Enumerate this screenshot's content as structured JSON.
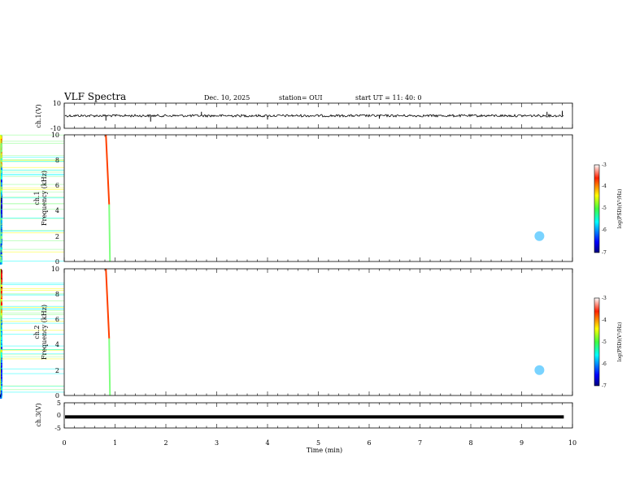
{
  "header": {
    "title": "VLF Spectra",
    "date": "Dec. 10, 2025",
    "station": "station= OUI",
    "start": "start  UT  =   11: 40: 0"
  },
  "chart_data": [
    {
      "type": "line",
      "name": "ch1-waveform",
      "ylabel": "ch.1(V)",
      "ylim": [
        -10,
        10
      ],
      "yticks": [
        "10",
        "-10"
      ],
      "xlim": [
        0,
        10
      ],
      "baseline": 0,
      "data_end_min": 9.83
    },
    {
      "type": "heatmap",
      "name": "ch1-spectrogram",
      "ylabel_line1": "ch.1",
      "ylabel_line2": "Frequency  (kHz)",
      "ylim": [
        0,
        10
      ],
      "yticks": [
        "0",
        "2",
        "4",
        "6",
        "8",
        "10"
      ],
      "xlim": [
        0,
        10
      ],
      "colorbar_label": "log(PSD)(V²/Hz)",
      "colorbar_range": [
        -7,
        -3
      ],
      "colorbar_ticks": [
        "-3",
        "-4",
        "-5",
        "-6",
        "-7"
      ]
    },
    {
      "type": "heatmap",
      "name": "ch2-spectrogram",
      "ylabel_line1": "ch.2",
      "ylabel_line2": "Frequency  (kHz)",
      "ylim": [
        0,
        10
      ],
      "yticks": [
        "0",
        "2",
        "4",
        "6",
        "8",
        "10"
      ],
      "xlim": [
        0,
        10
      ],
      "colorbar_label": "log(PSD)(V²/Hz)",
      "colorbar_range": [
        -7,
        -3
      ],
      "colorbar_ticks": [
        "-3",
        "-4",
        "-5",
        "-6",
        "-7"
      ]
    },
    {
      "type": "line",
      "name": "ch3-waveform",
      "ylabel": "ch.3(V)",
      "ylim": [
        -5,
        5
      ],
      "yticks": [
        "5",
        "0",
        "-5"
      ],
      "xlim": [
        0,
        10
      ],
      "level": -0.6,
      "data_end_min": 9.83
    }
  ],
  "xaxis": {
    "label": "Time  (min)",
    "ticks": [
      "0",
      "1",
      "2",
      "3",
      "4",
      "5",
      "6",
      "7",
      "8",
      "9",
      "10"
    ]
  },
  "colormap": [
    "#00007f",
    "#0000ff",
    "#0080ff",
    "#00ffff",
    "#80ff80",
    "#ffff00",
    "#ff8000",
    "#ff0000",
    "#7f0000"
  ]
}
